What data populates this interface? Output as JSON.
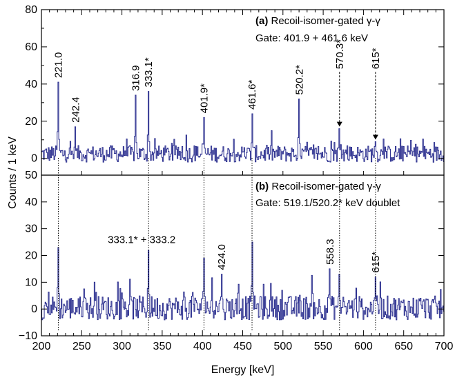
{
  "chart_data": [
    {
      "type": "line",
      "panel": "a",
      "title_tag": "(a)",
      "title": "Recoil-isomer-gated γ-γ",
      "subtitle": "Gate: 401.9 + 461.6 keV",
      "xlabel": "Energy [keV]",
      "ylabel": "Counts / 1 keV",
      "xlim": [
        200,
        700
      ],
      "ylim": [
        -9,
        80
      ],
      "xticks": [
        200,
        250,
        300,
        350,
        400,
        450,
        500,
        550,
        600,
        650,
        700
      ],
      "yticks": [
        0,
        20,
        40,
        60,
        80
      ],
      "color": "#2b2f8f",
      "peaks": [
        {
          "label": "221.0",
          "x": 221.0,
          "y": 41
        },
        {
          "label": "242.4",
          "x": 242.4,
          "y": 17
        },
        {
          "label": "316.9",
          "x": 316.9,
          "y": 34
        },
        {
          "label": "333.1*",
          "x": 333.1,
          "y": 36
        },
        {
          "label": "401.9*",
          "x": 401.9,
          "y": 22
        },
        {
          "label": "461.6*",
          "x": 461.6,
          "y": 24
        },
        {
          "label": "520.2*",
          "x": 520.2,
          "y": 32
        },
        {
          "label": "570.3*",
          "x": 570.3,
          "y": 16,
          "arrow": true
        },
        {
          "label": "615*",
          "x": 615,
          "y": 9,
          "arrow": true
        }
      ]
    },
    {
      "type": "line",
      "panel": "b",
      "title_tag": "(b)",
      "title": "Recoil-isomer-gated γ-γ",
      "subtitle": "Gate: 519.1/520.2* keV doublet",
      "xlabel": "Energy [keV]",
      "ylabel": "Counts / 1 keV",
      "xlim": [
        200,
        700
      ],
      "ylim": [
        -10,
        50
      ],
      "xticks": [
        200,
        250,
        300,
        350,
        400,
        450,
        500,
        550,
        600,
        650,
        700
      ],
      "yticks": [
        -10,
        0,
        10,
        20,
        30,
        40,
        50
      ],
      "color": "#2b2f8f",
      "peaks": [
        {
          "label": "333.1* + 333.2",
          "x": 333.1,
          "y": 22
        },
        {
          "label": "424.0",
          "x": 424.0,
          "y": 13
        },
        {
          "label": "558.3",
          "x": 558.3,
          "y": 15
        },
        {
          "label": "615*",
          "x": 615,
          "y": 12
        },
        {
          "label": "",
          "x": 221.0,
          "y": 23
        },
        {
          "label": "",
          "x": 401.9,
          "y": 19
        },
        {
          "label": "",
          "x": 461.6,
          "y": 25
        },
        {
          "label": "",
          "x": 570.3,
          "y": 13
        }
      ]
    }
  ],
  "guide_lines_keV": [
    221.0,
    333.1,
    401.9,
    461.6,
    570.3,
    615
  ]
}
